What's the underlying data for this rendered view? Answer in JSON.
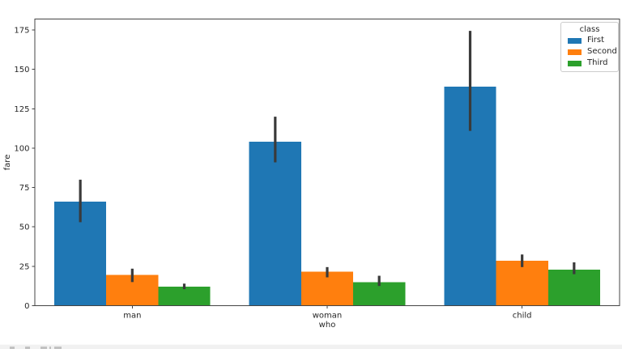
{
  "chart_data": {
    "type": "bar",
    "title": "",
    "xlabel": "who",
    "ylabel": "fare",
    "categories": [
      "man",
      "woman",
      "child"
    ],
    "series": [
      {
        "name": "First",
        "color": "#1f77b4",
        "values": [
          66,
          104,
          139
        ],
        "errors": [
          [
            53,
            80
          ],
          [
            91,
            120
          ],
          [
            111,
            174.5
          ]
        ]
      },
      {
        "name": "Second",
        "color": "#ff7f0e",
        "values": [
          19.5,
          21.5,
          28.5
        ],
        "errors": [
          [
            15,
            23.5
          ],
          [
            18,
            24.5
          ],
          [
            24.5,
            32.5
          ]
        ]
      },
      {
        "name": "Third",
        "color": "#2ca02c",
        "values": [
          12,
          15,
          23
        ],
        "errors": [
          [
            10.5,
            14
          ],
          [
            12.5,
            19
          ],
          [
            20,
            27.5
          ]
        ]
      }
    ],
    "yticks": [
      0,
      25,
      50,
      75,
      100,
      125,
      150,
      175
    ],
    "ylim": [
      0,
      182
    ],
    "grid": false,
    "legend": {
      "title": "class",
      "position": "upper right"
    },
    "errorbar_color": "#3a3a3a",
    "spine_color": "#444444",
    "bar_group_width_fraction": 0.8
  }
}
